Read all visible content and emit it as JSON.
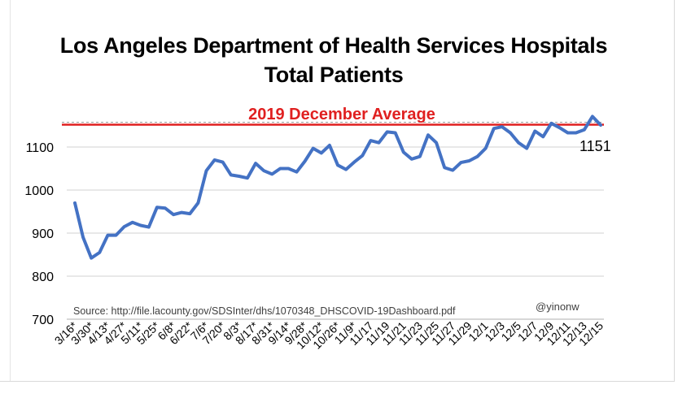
{
  "chart_data": {
    "type": "line",
    "title_line1": "Los Angeles Department of Health Services Hospitals",
    "title_line2": "Total Patients",
    "reference_line": {
      "label": "2019 December Average",
      "value": 1152,
      "color": "#e02020"
    },
    "yticks": [
      "1100",
      "1000",
      "900",
      "800",
      "700"
    ],
    "ytick_values": [
      1100,
      1000,
      900,
      800,
      700
    ],
    "ylim": [
      700,
      1200
    ],
    "grid": true,
    "source": "Source: http://file.lacounty.gov/SDSInter/dhs/1070348_DHSCOVID-19Dashboard.pdf",
    "credit": "@yinonw",
    "last_value_label": "1151",
    "series": [
      {
        "color": "#4472c4",
        "values": [
          970,
          890,
          842,
          855,
          895,
          895,
          915,
          925,
          918,
          914,
          960,
          958,
          943,
          948,
          945,
          970,
          1045,
          1070,
          1065,
          1035,
          1032,
          1028,
          1062,
          1045,
          1037,
          1050,
          1050,
          1042,
          1067,
          1097,
          1086,
          1104,
          1058,
          1048,
          1065,
          1080,
          1115,
          1110,
          1135,
          1133,
          1088,
          1072,
          1078,
          1128,
          1110,
          1052,
          1046,
          1064,
          1068,
          1078,
          1097,
          1143,
          1147,
          1133,
          1110,
          1097,
          1137,
          1124,
          1155,
          1145,
          1133,
          1133,
          1140,
          1171,
          1151
        ]
      }
    ],
    "xticks": [
      {
        "label": "3/16*",
        "index": 0
      },
      {
        "label": "3/30*",
        "index": 2
      },
      {
        "label": "4/13*",
        "index": 4
      },
      {
        "label": "4/27*",
        "index": 6
      },
      {
        "label": "5/11*",
        "index": 8
      },
      {
        "label": "5/25*",
        "index": 10
      },
      {
        "label": "6/8*",
        "index": 12
      },
      {
        "label": "6/22*",
        "index": 14
      },
      {
        "label": "7/6*",
        "index": 16
      },
      {
        "label": "7/20*",
        "index": 18
      },
      {
        "label": "8/3*",
        "index": 20
      },
      {
        "label": "8/17*",
        "index": 22
      },
      {
        "label": "8/31*",
        "index": 24
      },
      {
        "label": "9/14*",
        "index": 26
      },
      {
        "label": "9/28*",
        "index": 28
      },
      {
        "label": "10/12*",
        "index": 30
      },
      {
        "label": "10/26*",
        "index": 32
      },
      {
        "label": "11/9*",
        "index": 34
      },
      {
        "label": "11/17",
        "index": 36
      },
      {
        "label": "11/19",
        "index": 38
      },
      {
        "label": "11/21",
        "index": 40
      },
      {
        "label": "11/23",
        "index": 42
      },
      {
        "label": "11/25",
        "index": 44
      },
      {
        "label": "11/27",
        "index": 46
      },
      {
        "label": "11/29",
        "index": 48
      },
      {
        "label": "12/1",
        "index": 50
      },
      {
        "label": "12/3",
        "index": 52
      },
      {
        "label": "12/5",
        "index": 54
      },
      {
        "label": "12/7",
        "index": 56
      },
      {
        "label": "12/9",
        "index": 58
      },
      {
        "label": "12/11",
        "index": 60
      },
      {
        "label": "12/13",
        "index": 62
      },
      {
        "label": "12/15",
        "index": 64
      }
    ]
  }
}
